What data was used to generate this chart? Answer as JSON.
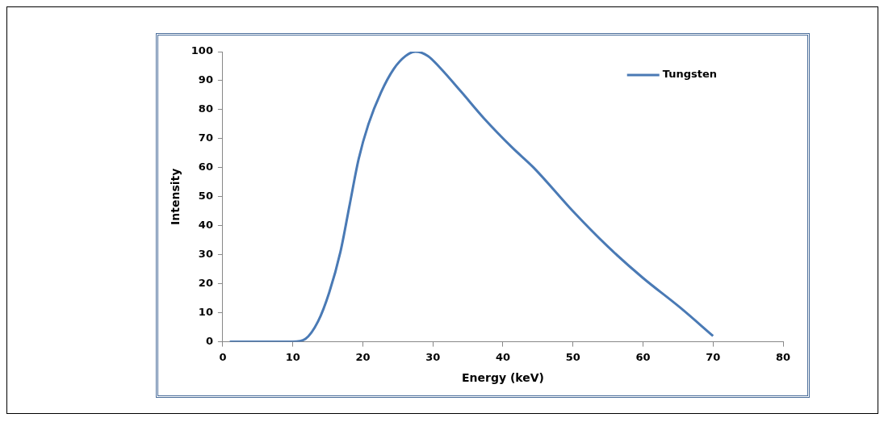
{
  "chart_data": {
    "type": "line",
    "xlabel": "Energy (keV)",
    "ylabel": "Intensity",
    "xlim": [
      0,
      80
    ],
    "xticks": [
      0,
      10,
      20,
      30,
      40,
      50,
      60,
      70,
      80
    ],
    "ylim": [
      0,
      100
    ],
    "yticks": [
      0,
      10,
      20,
      30,
      40,
      50,
      60,
      70,
      80,
      90,
      100
    ],
    "grid": false,
    "legend": "top right",
    "marker": "none",
    "line_style": "solid",
    "series": [
      {
        "name": "Tungsten",
        "color": "#4a7ab5",
        "x": [
          1,
          10,
          11.8,
          13.6,
          15.2,
          16.8,
          18.1,
          19.4,
          20.8,
          22.6,
          24.4,
          26.1,
          27.5,
          29.3,
          31,
          34.1,
          37.3,
          41.3,
          44.4,
          50,
          54.9,
          60,
          65.2,
          70
        ],
        "values": [
          0,
          0,
          1,
          7,
          17,
          31,
          47,
          63,
          75,
          86,
          94,
          98.5,
          100,
          98.5,
          94.5,
          86,
          77,
          67,
          60,
          45,
          33,
          22,
          12,
          2
        ]
      }
    ]
  }
}
